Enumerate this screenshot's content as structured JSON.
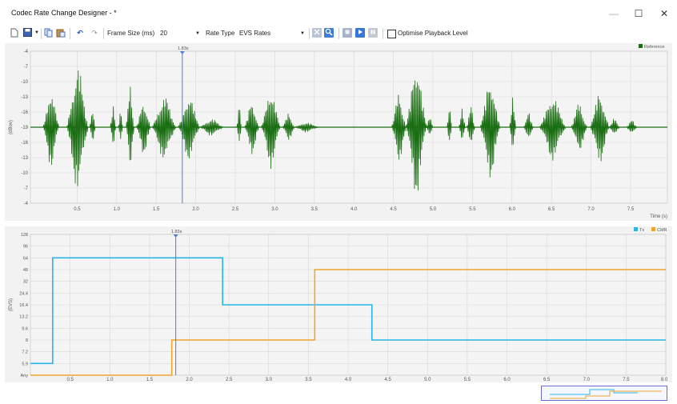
{
  "window": {
    "title": "Codec Rate Change Designer - *",
    "minimize_glyph": "—",
    "maximize_glyph": "☐",
    "close_glyph": "✕"
  },
  "toolbar": {
    "icons": [
      "new-file-icon",
      "save-icon",
      "dropdown-arrow-icon",
      "copy-icon",
      "paste-icon",
      "undo-icon",
      "redo-icon"
    ],
    "frame_size_label": "Frame Size (ms)",
    "frame_size_value": "20",
    "rate_type_label": "Rate Type",
    "rate_type_value": "EVS Rates",
    "optimise_label": "Optimise Playback Level",
    "optimise_checked": false
  },
  "colors": {
    "reference": "#1a6e12",
    "tx": "#27b5e8",
    "cmr": "#f0a52c",
    "cursor": "#4a7fd0",
    "grid": "#d8d8d8",
    "plot_bg": "#f4f4f4"
  },
  "chart_data": [
    {
      "type": "line",
      "title": "",
      "legend": [
        {
          "name": "Reference",
          "color": "#1a6e12"
        }
      ],
      "legend_position": "top-right",
      "xlabel": "Time (s)",
      "ylabel": "(dBov)",
      "xlim": [
        0,
        7.5
      ],
      "x_ticks": [
        "0.5",
        "1.0",
        "1.5",
        "2.0",
        "2.5",
        "3.0",
        "3.5",
        "4.0",
        "4.5",
        "5.0",
        "5.5",
        "6.0",
        "6.5",
        "7.0",
        "7.5"
      ],
      "y_tick_labels": [
        "-4",
        "-7",
        "-10",
        "-13",
        "-16",
        "-19",
        "-16",
        "-13",
        "-10",
        "-7",
        "-4"
      ],
      "cursor_label": "1.83s",
      "cursor_x": 1.83,
      "grid": true,
      "series": [
        {
          "name": "Reference",
          "segments": [
            {
              "start": 0.07,
              "end": 0.27,
              "amp": 0.55
            },
            {
              "start": 0.37,
              "end": 0.64,
              "amp": 0.88
            },
            {
              "start": 0.66,
              "end": 0.73,
              "amp": 0.25
            },
            {
              "start": 0.92,
              "end": 0.99,
              "amp": 0.3
            },
            {
              "start": 1.02,
              "end": 1.08,
              "amp": 0.22
            },
            {
              "start": 1.12,
              "end": 1.22,
              "amp": 0.6
            },
            {
              "start": 1.25,
              "end": 1.43,
              "amp": 0.38
            },
            {
              "start": 1.45,
              "end": 1.75,
              "amp": 0.45
            },
            {
              "start": 1.78,
              "end": 2.05,
              "amp": 0.45
            },
            {
              "start": 2.05,
              "end": 2.35,
              "amp": 0.12
            },
            {
              "start": 2.52,
              "end": 2.58,
              "amp": 0.3
            },
            {
              "start": 2.62,
              "end": 2.8,
              "amp": 0.38
            },
            {
              "start": 2.83,
              "end": 3.07,
              "amp": 0.55
            },
            {
              "start": 3.1,
              "end": 3.25,
              "amp": 0.2
            },
            {
              "start": 3.25,
              "end": 3.55,
              "amp": 0.07
            },
            {
              "start": 4.48,
              "end": 4.66,
              "amp": 0.5
            },
            {
              "start": 4.66,
              "end": 4.92,
              "amp": 0.95
            },
            {
              "start": 4.92,
              "end": 5.0,
              "amp": 0.15
            },
            {
              "start": 5.18,
              "end": 5.24,
              "amp": 0.3
            },
            {
              "start": 5.33,
              "end": 5.41,
              "amp": 0.25
            },
            {
              "start": 5.43,
              "end": 5.53,
              "amp": 0.3
            },
            {
              "start": 5.6,
              "end": 5.85,
              "amp": 0.7
            },
            {
              "start": 5.97,
              "end": 6.05,
              "amp": 0.4
            },
            {
              "start": 6.15,
              "end": 6.27,
              "amp": 0.2
            },
            {
              "start": 6.35,
              "end": 6.68,
              "amp": 0.45
            },
            {
              "start": 6.75,
              "end": 6.95,
              "amp": 0.35
            },
            {
              "start": 6.99,
              "end": 7.23,
              "amp": 0.5
            },
            {
              "start": 7.23,
              "end": 7.36,
              "amp": 0.12
            },
            {
              "start": 7.45,
              "end": 7.58,
              "amp": 0.1
            }
          ]
        }
      ]
    },
    {
      "type": "line",
      "title": "",
      "legend": [
        {
          "name": "Tx",
          "color": "#27b5e8"
        },
        {
          "name": "CMR",
          "color": "#f0a52c"
        }
      ],
      "legend_position": "top-right",
      "xlabel": "",
      "ylabel": "(EVS)",
      "xlim": [
        0,
        8.0
      ],
      "x_ticks": [
        "0.5",
        "1.0",
        "1.5",
        "2.0",
        "2.5",
        "3.0",
        "3.5",
        "4.0",
        "4.5",
        "5.0",
        "5.5",
        "6.0",
        "6.5",
        "7.0",
        "7.5",
        "8.0"
      ],
      "y_categories": [
        "Any",
        "5.9",
        "7.2",
        "8",
        "9.6",
        "13.2",
        "16.4",
        "24.4",
        "32",
        "48",
        "64",
        "96",
        "128"
      ],
      "cursor_label": "1.83s",
      "cursor_x": 1.83,
      "grid": true,
      "series": [
        {
          "name": "Tx",
          "x": [
            0,
            0.28,
            0.28,
            2.42,
            2.42,
            4.3,
            4.3,
            8.0
          ],
          "y": [
            "5.9",
            "5.9",
            "64",
            "64",
            "16.4",
            "16.4",
            "8",
            "8"
          ]
        },
        {
          "name": "CMR",
          "x": [
            0,
            1.78,
            1.78,
            3.58,
            3.58,
            8.0
          ],
          "y": [
            "Any",
            "Any",
            "8",
            "8",
            "48",
            "48"
          ]
        }
      ]
    }
  ]
}
